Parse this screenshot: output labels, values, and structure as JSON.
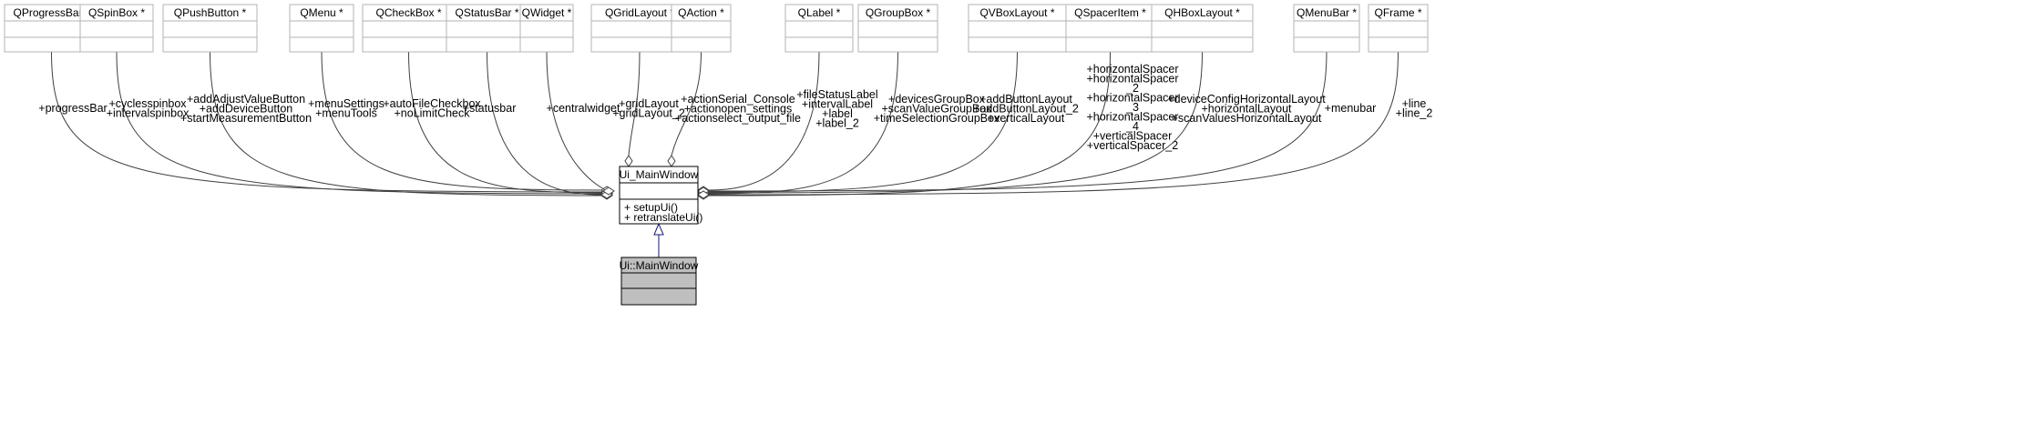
{
  "main_class": {
    "name": "Ui_MainWindow",
    "methods": [
      "+ setupUi()",
      "+ retranslateUi()"
    ]
  },
  "derived_class": {
    "name": "Ui::MainWindow"
  },
  "members": [
    {
      "type": "QProgressBar *",
      "labels": [
        "+progressBar"
      ]
    },
    {
      "type": "QSpinBox *",
      "labels": [
        "+cyclesspinbox",
        "+intervalspinbox"
      ]
    },
    {
      "type": "QPushButton *",
      "labels": [
        "+addAdjustValueButton",
        "+addDeviceButton",
        "+startMeasurementButton"
      ]
    },
    {
      "type": "QMenu *",
      "labels": [
        "+menuSettings",
        "+menuTools"
      ]
    },
    {
      "type": "QCheckBox *",
      "labels": [
        "+autoFileCheckbox",
        "+noLimitCheck"
      ]
    },
    {
      "type": "QStatusBar *",
      "labels": [
        "+statusbar"
      ]
    },
    {
      "type": "QWidget *",
      "labels": [
        "+centralwidget"
      ]
    },
    {
      "type": "QGridLayout *",
      "labels": [
        "+gridLayout",
        "+gridLayout_2"
      ]
    },
    {
      "type": "QAction *",
      "labels": [
        "+actionSerial_Console",
        "+actionopen_settings",
        "+actionselect_output_file"
      ]
    },
    {
      "type": "QLabel *",
      "labels": [
        "+fileStatusLabel",
        "+intervalLabel",
        "+label",
        "+label_2"
      ]
    },
    {
      "type": "QGroupBox *",
      "labels": [
        "+devicesGroupBox",
        "+scanValueGroupBox",
        "+timeSelectionGroupBox"
      ]
    },
    {
      "type": "QVBoxLayout *",
      "labels": [
        "+addButtonLayout",
        "+addButtonLayout_2",
        "+verticalLayout"
      ]
    },
    {
      "type": "QSpacerItem *",
      "labels": [
        "+horizontalSpacer",
        "+horizontalSpacer",
        "_2",
        "+horizontalSpacer",
        "_3",
        "+horizontalSpacer",
        "_4",
        "+verticalSpacer",
        "+verticalSpacer_2"
      ]
    },
    {
      "type": "QHBoxLayout *",
      "labels": [
        "+deviceConfigHorizontalLayout",
        "+horizontalLayout",
        "+scanValuesHorizontalLayout"
      ]
    },
    {
      "type": "QMenuBar *",
      "labels": [
        "+menubar"
      ]
    },
    {
      "type": "QFrame *",
      "labels": [
        "+line",
        "+line_2"
      ]
    }
  ],
  "colors": {
    "member_box_border": "#b3b3b3",
    "main_box_border": "#000000",
    "derived_box_fill": "#bfbfbf",
    "inheritance_arrow": "#191970",
    "edge_line": "#404040"
  }
}
